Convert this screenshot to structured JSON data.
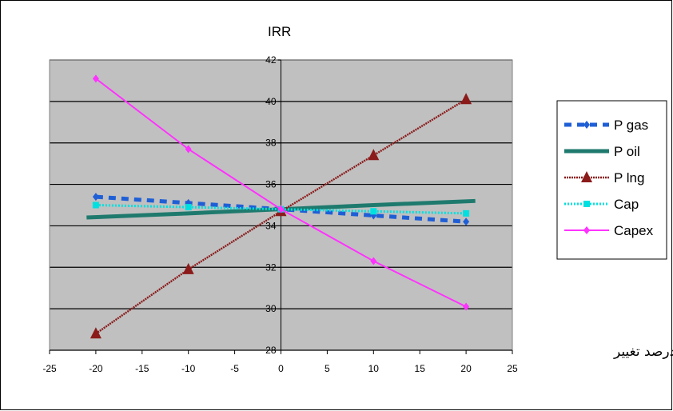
{
  "chart_data": {
    "type": "line",
    "title": "IRR",
    "xlabel": "درصد تغییر",
    "ylabel": "",
    "xlim": [
      -25,
      25
    ],
    "ylim": [
      28,
      42
    ],
    "xticks": [
      -25,
      -20,
      -15,
      -10,
      -5,
      0,
      5,
      10,
      15,
      20,
      25
    ],
    "yticks": [
      28,
      30,
      32,
      34,
      36,
      38,
      40,
      42
    ],
    "grid": true,
    "legend_position": "right",
    "plot_background": "#c0c0c0",
    "series": [
      {
        "name": "P gas",
        "color": "#1f5fd6",
        "style": "dashed",
        "marker": "diamond",
        "x": [
          -20,
          -10,
          0,
          10,
          20
        ],
        "y": [
          35.4,
          35.1,
          34.8,
          34.5,
          34.2
        ]
      },
      {
        "name": "P oil",
        "color": "#1f7a6e",
        "style": "solid-thick",
        "marker": "none",
        "x": [
          -21,
          -10,
          0,
          10,
          21
        ],
        "y": [
          34.4,
          34.6,
          34.8,
          35.0,
          35.2
        ]
      },
      {
        "name": "P lng",
        "color": "#8b1a1a",
        "style": "dotted",
        "marker": "triangle",
        "x": [
          -20,
          -10,
          0,
          10,
          20
        ],
        "y": [
          28.8,
          31.9,
          34.7,
          37.4,
          40.1
        ]
      },
      {
        "name": "Cap",
        "color": "#00e0e0",
        "style": "wavy",
        "marker": "square",
        "x": [
          -20,
          -10,
          0,
          10,
          20
        ],
        "y": [
          35.0,
          34.9,
          34.8,
          34.7,
          34.6
        ]
      },
      {
        "name": "Capex",
        "color": "#ff33ff",
        "style": "solid",
        "marker": "diamond",
        "x": [
          -20,
          -10,
          0,
          10,
          20
        ],
        "y": [
          41.1,
          37.7,
          34.8,
          32.3,
          30.1
        ]
      }
    ]
  }
}
